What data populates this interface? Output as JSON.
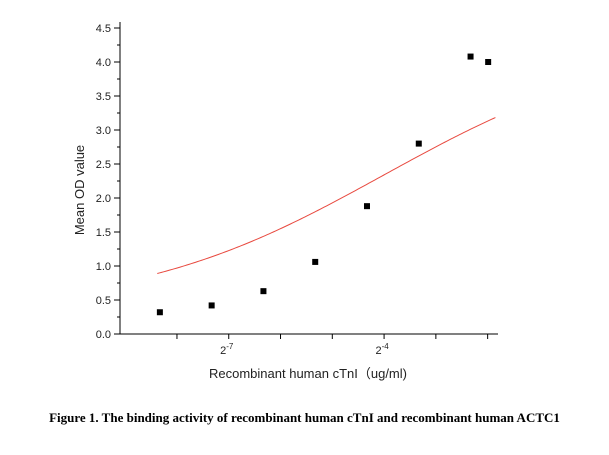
{
  "chart_data": {
    "type": "scatter",
    "xlabel": "Recombinant human cTnI（ug/ml)",
    "ylabel": "Mean OD value",
    "ylim": [
      0.0,
      4.5
    ],
    "yticks": [
      "0.0",
      "0.5",
      "1.0",
      "1.5",
      "2.0",
      "2.5",
      "3.0",
      "3.5",
      "4.0",
      "4.5"
    ],
    "xscale": "log2",
    "xlim_log2": [
      -9.1,
      -1.8
    ],
    "xtick_labels": [
      {
        "base": "2",
        "exp": "-7",
        "log2": -7
      },
      {
        "base": "2",
        "exp": "-4",
        "log2": -4
      }
    ],
    "xtick_minor_log2": [
      -8.0,
      -7.0,
      -6.0,
      -5.0,
      -4.0,
      -3.0,
      -2.0
    ],
    "points": [
      {
        "log2x": -8.33,
        "y": 0.32
      },
      {
        "log2x": -7.33,
        "y": 0.42
      },
      {
        "log2x": -6.33,
        "y": 0.63
      },
      {
        "log2x": -5.33,
        "y": 1.06
      },
      {
        "log2x": -4.33,
        "y": 1.88
      },
      {
        "log2x": -3.33,
        "y": 2.8
      },
      {
        "log2x": -2.33,
        "y": 4.08
      },
      {
        "log2x": -1.99,
        "y": 4.0
      }
    ],
    "fit": {
      "model": "4PL",
      "bottom": 0.33,
      "top": 4.35,
      "log2_ec50": -4.0,
      "hill_slope_log2": 0.6,
      "color": "#e8493f"
    },
    "marker_color": "#000000",
    "axis_color": "#000000"
  },
  "caption": "Figure 1. The binding activity of recombinant human cTnI and recombinant human ACTC1"
}
